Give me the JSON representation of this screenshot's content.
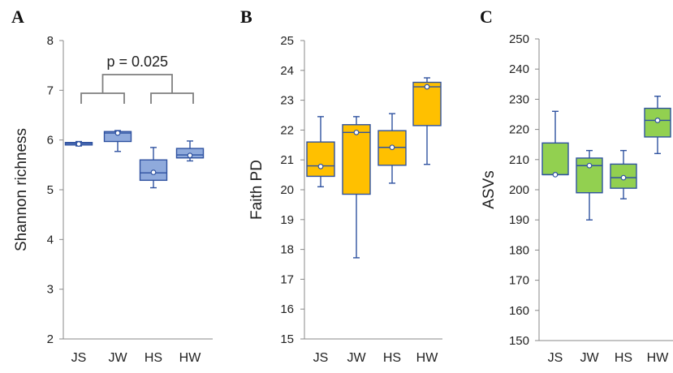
{
  "chart_data": [
    {
      "type": "box",
      "panel_letter": "A",
      "ylabel": "Shannon richness",
      "ylim": [
        2,
        8
      ],
      "yticks": [
        2,
        3,
        4,
        5,
        6,
        7,
        8
      ],
      "categories": [
        "JS",
        "JW",
        "HS",
        "HW"
      ],
      "boxes": [
        {
          "min": 5.88,
          "q1": 5.9,
          "median": 5.93,
          "q3": 5.95,
          "max": 5.97,
          "mean": 5.92
        },
        {
          "min": 5.77,
          "q1": 5.97,
          "median": 6.14,
          "q3": 6.17,
          "max": 6.19,
          "mean": 6.14
        },
        {
          "min": 5.04,
          "q1": 5.19,
          "median": 5.34,
          "q3": 5.6,
          "max": 5.85,
          "mean": 5.35
        },
        {
          "min": 5.58,
          "q1": 5.64,
          "median": 5.7,
          "q3": 5.83,
          "max": 5.98,
          "mean": 5.69
        }
      ],
      "box_color": "#8faadc",
      "edge_color": "#2f52a0",
      "annotation": "p = 0.025"
    },
    {
      "type": "box",
      "panel_letter": "B",
      "ylabel": "Faith PD",
      "ylim": [
        15,
        25
      ],
      "yticks": [
        15,
        16,
        17,
        18,
        19,
        20,
        21,
        22,
        23,
        24,
        25
      ],
      "categories": [
        "JS",
        "JW",
        "HS",
        "HW"
      ],
      "boxes": [
        {
          "min": 20.1,
          "q1": 20.45,
          "median": 20.8,
          "q3": 21.6,
          "max": 22.45,
          "mean": 20.78
        },
        {
          "min": 17.72,
          "q1": 19.85,
          "median": 21.92,
          "q3": 22.18,
          "max": 22.45,
          "mean": 21.92
        },
        {
          "min": 20.22,
          "q1": 20.82,
          "median": 21.42,
          "q3": 21.98,
          "max": 22.55,
          "mean": 21.42
        },
        {
          "min": 20.85,
          "q1": 22.15,
          "median": 23.45,
          "q3": 23.6,
          "max": 23.75,
          "mean": 23.45
        }
      ],
      "box_color": "#ffc000",
      "edge_color": "#2f52a0"
    },
    {
      "type": "box",
      "panel_letter": "C",
      "ylabel": "ASVs",
      "ylim": [
        150,
        250
      ],
      "yticks": [
        150,
        160,
        170,
        180,
        190,
        200,
        210,
        220,
        230,
        240,
        250
      ],
      "categories": [
        "JS",
        "JW",
        "HS",
        "HW"
      ],
      "boxes": [
        {
          "min": 205,
          "q1": 205,
          "median": 205,
          "q3": 215.5,
          "max": 226,
          "mean": 205
        },
        {
          "min": 190,
          "q1": 199,
          "median": 208,
          "q3": 210.5,
          "max": 213,
          "mean": 208
        },
        {
          "min": 197,
          "q1": 200.5,
          "median": 204,
          "q3": 208.5,
          "max": 213,
          "mean": 204
        },
        {
          "min": 212,
          "q1": 217.5,
          "median": 223,
          "q3": 227,
          "max": 231,
          "mean": 223
        }
      ],
      "box_color": "#92d050",
      "edge_color": "#2f52a0"
    }
  ]
}
